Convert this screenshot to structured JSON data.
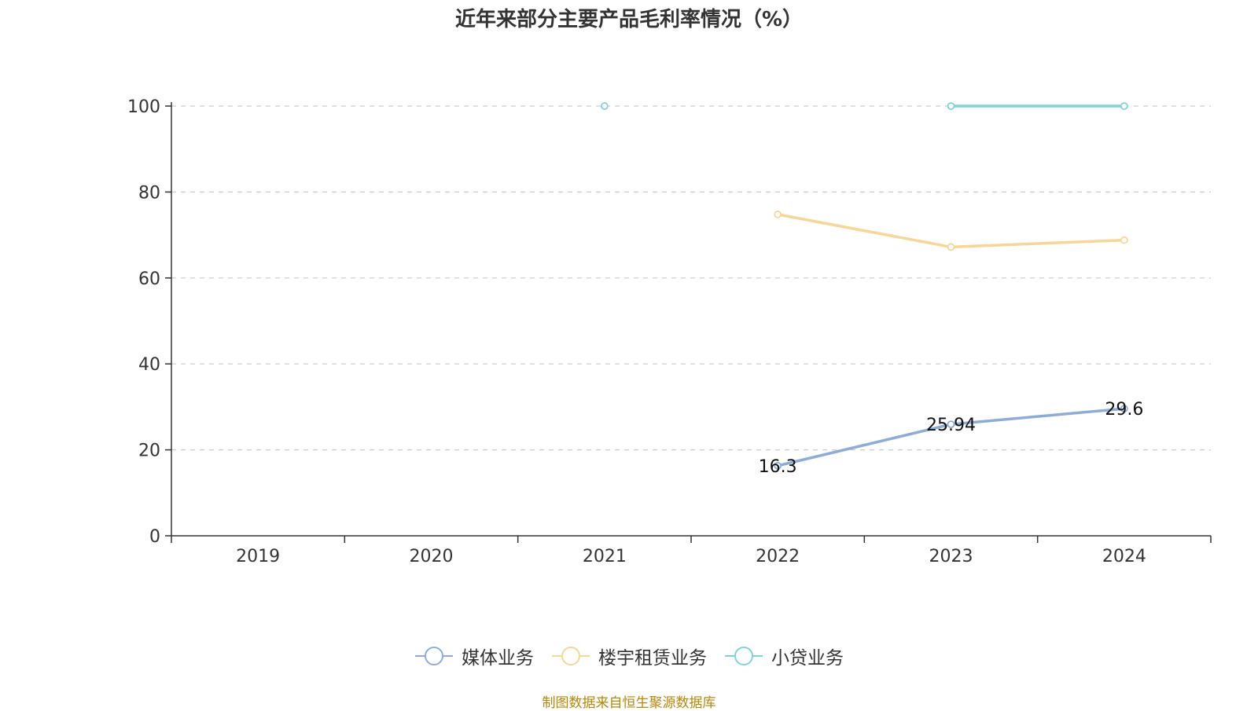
{
  "chart_data": {
    "type": "line",
    "title": "近年来部分主要产品毛利率情况（%）",
    "xlabel": "",
    "ylabel": "",
    "x": [
      "2019",
      "2020",
      "2021",
      "2022",
      "2023",
      "2024"
    ],
    "ylim": [
      0,
      100
    ],
    "yticks": [
      0,
      20,
      40,
      60,
      80,
      100
    ],
    "grid": true,
    "legend_position": "bottom",
    "series": [
      {
        "name": "媒体业务",
        "color": "#8eacd8",
        "values": [
          null,
          null,
          null,
          16.3,
          25.94,
          29.6
        ],
        "labels": true
      },
      {
        "name": "楼宇租赁业务",
        "color": "#f8d598",
        "values": [
          null,
          null,
          null,
          74.8,
          67.2,
          68.8
        ],
        "labels": false
      },
      {
        "name": "小贷业务",
        "color": "#7fd3dc",
        "values": [
          null,
          null,
          100,
          null,
          100,
          100
        ],
        "labels": false
      }
    ]
  },
  "source_note": "制图数据来自恒生聚源数据库"
}
